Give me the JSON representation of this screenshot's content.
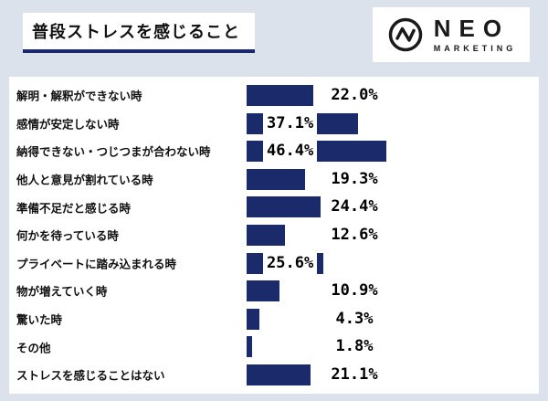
{
  "page": {
    "background_color": "#dbe2ec",
    "panel_color": "#ffffff"
  },
  "header": {
    "title": "普段ストレスを感じること",
    "underline_color": "#1b2a6b"
  },
  "logo": {
    "name": "NEO",
    "sub": "MARKETING",
    "mark": "pulse-circle-icon"
  },
  "chart_data": {
    "type": "bar",
    "orientation": "horizontal",
    "bar_color": "#1b2a6b",
    "value_range": [
      0,
      50
    ],
    "grid": false,
    "legend": false,
    "categories": [
      "解明・解釈ができない時",
      "感情が安定しない時",
      "納得できない・つじつまが合わない時",
      "他人と意見が割れている時",
      "準備不足だと感じる時",
      "何かを待っている時",
      "プライベートに踏み込まれる時",
      "物が増えていく時",
      "驚いた時",
      "その他",
      "ストレスを感じることはない"
    ],
    "values": [
      22.0,
      37.1,
      46.4,
      19.3,
      24.4,
      12.6,
      25.6,
      10.9,
      4.3,
      1.8,
      21.1
    ],
    "labels": [
      "22.0%",
      "37.1%",
      "46.4%",
      "19.3%",
      "24.4%",
      "12.6%",
      "25.6%",
      "10.9%",
      "4.3%",
      "1.8%",
      "21.1%"
    ],
    "label_inside": [
      false,
      true,
      true,
      false,
      false,
      false,
      true,
      false,
      false,
      false,
      false
    ]
  }
}
